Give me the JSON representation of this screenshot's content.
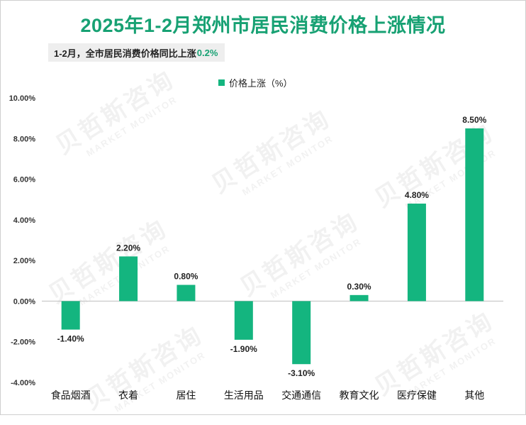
{
  "title": "2025年1-2月郑州市居民消费价格上涨情况",
  "subtitle": {
    "prefix": "1-2月，全市居民消费价格同比上涨",
    "value": "0.2%"
  },
  "watermark": {
    "cn": "贝哲斯咨询",
    "en": "MARKET MONITOR"
  },
  "colors": {
    "bar": "#14b57f",
    "title": "#17a173",
    "axis": "#bfbfbf"
  },
  "chart_data": {
    "type": "bar",
    "title": "2025年1-2月郑州市居民消费价格上涨情况",
    "categories": [
      "食品烟酒",
      "衣着",
      "居住",
      "生活用品",
      "交通通信",
      "教育文化",
      "医疗保健",
      "其他"
    ],
    "series": [
      {
        "name": "价格上涨（%）",
        "values": [
          -1.4,
          2.2,
          0.8,
          -1.9,
          -3.1,
          0.3,
          4.8,
          8.5
        ],
        "labels": [
          "-1.40%",
          "2.20%",
          "0.80%",
          "-1.90%",
          "-3.10%",
          "0.30%",
          "4.80%",
          "8.50%"
        ]
      }
    ],
    "ylim": [
      -4,
      10
    ],
    "yticks": [
      -4,
      -2,
      0,
      2,
      4,
      6,
      8,
      10
    ],
    "ytick_labels": [
      "-4.00%",
      "-2.00%",
      "0.00%",
      "2.00%",
      "4.00%",
      "6.00%",
      "8.00%",
      "10.00%"
    ],
    "grid": false,
    "legend": "top-center"
  }
}
